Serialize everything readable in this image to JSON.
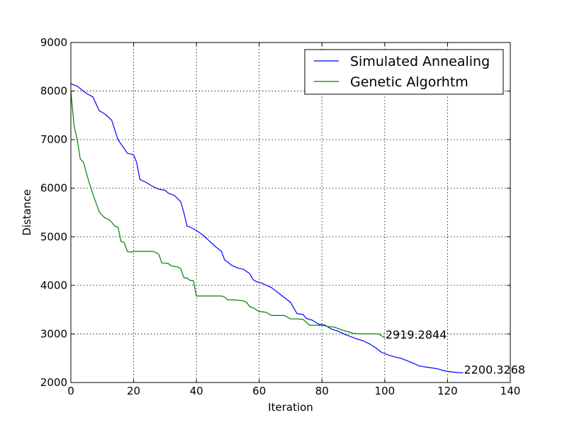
{
  "chart_data": {
    "type": "line",
    "title": "",
    "xlabel": "Iteration",
    "ylabel": "Distance",
    "xlim": [
      0,
      140
    ],
    "ylim": [
      2000,
      9000
    ],
    "xticks": [
      0,
      20,
      40,
      60,
      80,
      100,
      120,
      140
    ],
    "yticks": [
      2000,
      3000,
      4000,
      5000,
      6000,
      7000,
      8000,
      9000
    ],
    "grid": true,
    "legend_position": "top-right",
    "series": [
      {
        "name": "Simulated Annealing",
        "color": "#0000ff",
        "x": [
          0,
          2,
          3,
          5,
          7,
          9,
          11,
          13,
          15,
          18,
          20,
          21,
          22,
          24,
          26,
          28,
          30,
          31,
          33,
          35,
          36,
          37,
          38,
          40,
          42,
          44,
          46,
          48,
          49,
          50,
          51,
          53,
          55,
          57,
          58,
          59,
          61,
          63,
          64,
          66,
          68,
          70,
          72,
          74,
          75,
          77,
          79,
          81,
          83,
          85,
          87,
          89,
          91,
          93,
          95,
          97,
          99,
          101,
          103,
          105,
          107,
          109,
          111,
          113,
          115,
          117,
          119,
          121,
          123,
          125
        ],
        "y": [
          8150,
          8100,
          8050,
          7950,
          7880,
          7600,
          7520,
          7400,
          7000,
          6720,
          6690,
          6520,
          6180,
          6120,
          6040,
          5980,
          5960,
          5900,
          5850,
          5720,
          5500,
          5220,
          5200,
          5130,
          5040,
          4920,
          4800,
          4700,
          4520,
          4480,
          4420,
          4360,
          4330,
          4240,
          4120,
          4080,
          4040,
          3980,
          3950,
          3850,
          3750,
          3650,
          3420,
          3400,
          3320,
          3280,
          3200,
          3180,
          3100,
          3060,
          3000,
          2950,
          2900,
          2860,
          2800,
          2720,
          2620,
          2570,
          2530,
          2500,
          2450,
          2400,
          2340,
          2320,
          2300,
          2280,
          2240,
          2220,
          2205,
          2200.3268
        ]
      },
      {
        "name": "Genetic Algorhtm",
        "color": "#008000",
        "x": [
          0,
          1,
          2,
          3,
          4,
          5,
          6,
          7,
          8,
          9,
          10,
          11,
          12,
          13,
          14,
          15,
          16,
          17,
          18,
          19,
          20,
          22,
          24,
          26,
          27,
          28,
          29,
          30,
          31,
          32,
          34,
          35,
          36,
          37,
          38,
          39,
          40,
          42,
          45,
          48,
          49,
          50,
          52,
          55,
          56,
          57,
          58,
          60,
          62,
          64,
          66,
          67,
          68,
          70,
          72,
          74,
          76,
          80,
          82,
          84,
          86,
          88,
          90,
          92,
          95,
          98,
          100
        ],
        "y": [
          8000,
          7300,
          7000,
          6600,
          6540,
          6300,
          6080,
          5880,
          5700,
          5520,
          5440,
          5380,
          5360,
          5300,
          5220,
          5200,
          4900,
          4880,
          4700,
          4680,
          4700,
          4700,
          4700,
          4700,
          4680,
          4640,
          4460,
          4460,
          4450,
          4400,
          4380,
          4340,
          4160,
          4150,
          4100,
          4100,
          3780,
          3780,
          3780,
          3780,
          3760,
          3700,
          3700,
          3680,
          3650,
          3560,
          3540,
          3460,
          3450,
          3380,
          3380,
          3380,
          3380,
          3310,
          3310,
          3300,
          3180,
          3180,
          3150,
          3140,
          3090,
          3050,
          3010,
          3000,
          3000,
          3000,
          2919.2844
        ]
      }
    ],
    "annotations": [
      {
        "text": "2919.2844",
        "x": 100,
        "y": 2919.2844
      },
      {
        "text": "2200.3268",
        "x": 125,
        "y": 2200.3268
      }
    ]
  }
}
